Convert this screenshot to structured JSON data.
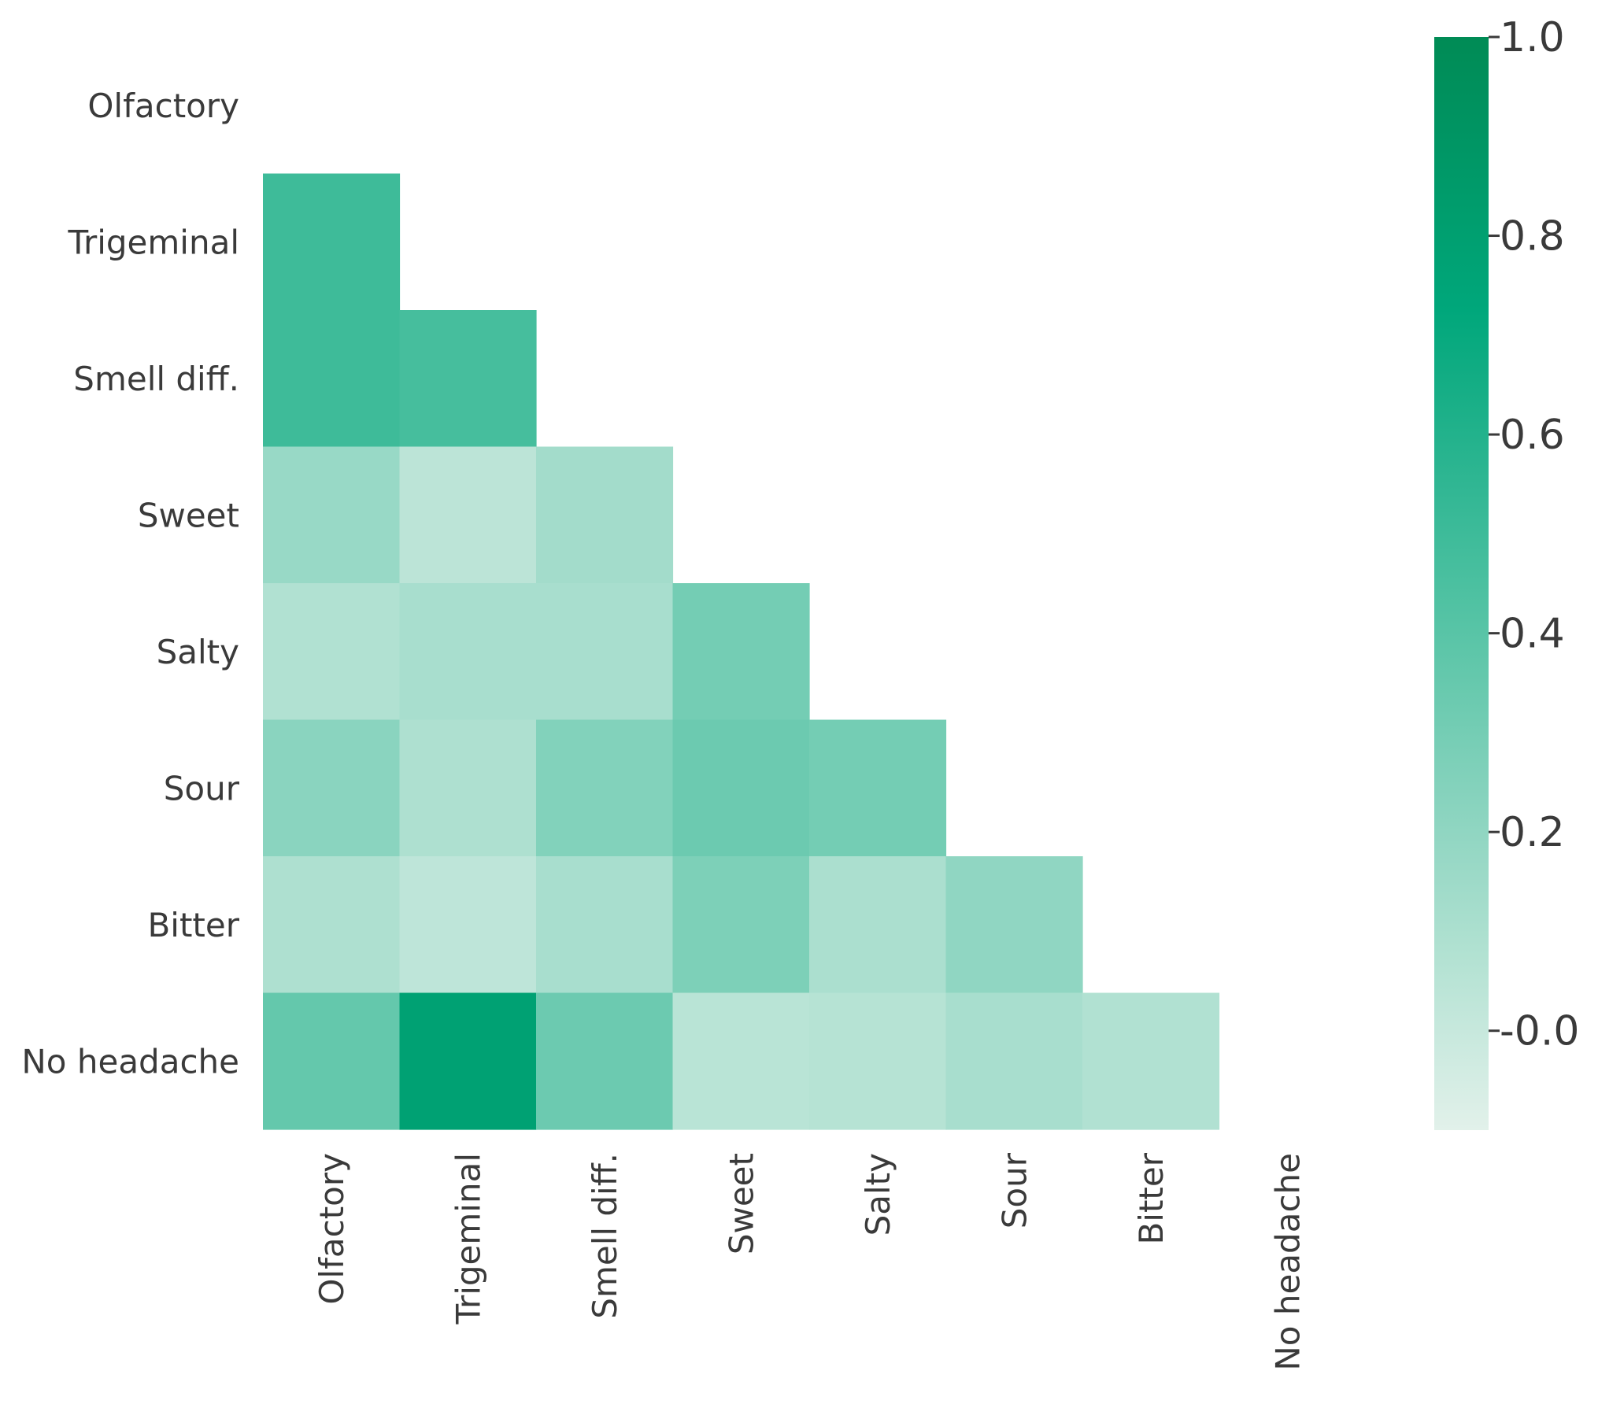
{
  "chart_data": {
    "type": "heatmap",
    "title": "",
    "xlabel": "",
    "ylabel": "",
    "x_categories": [
      "Olfactory",
      "Trigeminal",
      "Smell diff.",
      "Sweet",
      "Salty",
      "Sour",
      "Bitter",
      "No headache"
    ],
    "y_categories": [
      "Olfactory",
      "Trigeminal",
      "Smell diff.",
      "Sweet",
      "Salty",
      "Sour",
      "Bitter",
      "No headache"
    ],
    "mask": "upper-triangle-including-diagonal",
    "values": [
      [
        null,
        null,
        null,
        null,
        null,
        null,
        null,
        null
      ],
      [
        0.5,
        null,
        null,
        null,
        null,
        null,
        null,
        null
      ],
      [
        0.5,
        0.47,
        null,
        null,
        null,
        null,
        null,
        null
      ],
      [
        0.17,
        0.04,
        0.13,
        null,
        null,
        null,
        null,
        null
      ],
      [
        0.08,
        0.11,
        0.11,
        0.3,
        null,
        null,
        null,
        null
      ],
      [
        0.22,
        0.09,
        0.25,
        0.33,
        0.3,
        null,
        null,
        null
      ],
      [
        0.09,
        0.03,
        0.11,
        0.27,
        0.1,
        0.2,
        null,
        null
      ],
      [
        0.36,
        0.78,
        0.33,
        0.05,
        0.06,
        0.11,
        0.08,
        null
      ]
    ],
    "colorbar": {
      "min": -0.1,
      "max": 1.0,
      "ticks": [
        1.0,
        0.8,
        0.6,
        0.4,
        0.2,
        0.0
      ],
      "tick_labels": [
        "1.0",
        "0.8",
        "0.6",
        "0.4",
        "0.2",
        "-0.0"
      ],
      "color_low": "#e2f1ea",
      "color_mid": "#00a77b",
      "color_high": "#008b55"
    }
  }
}
